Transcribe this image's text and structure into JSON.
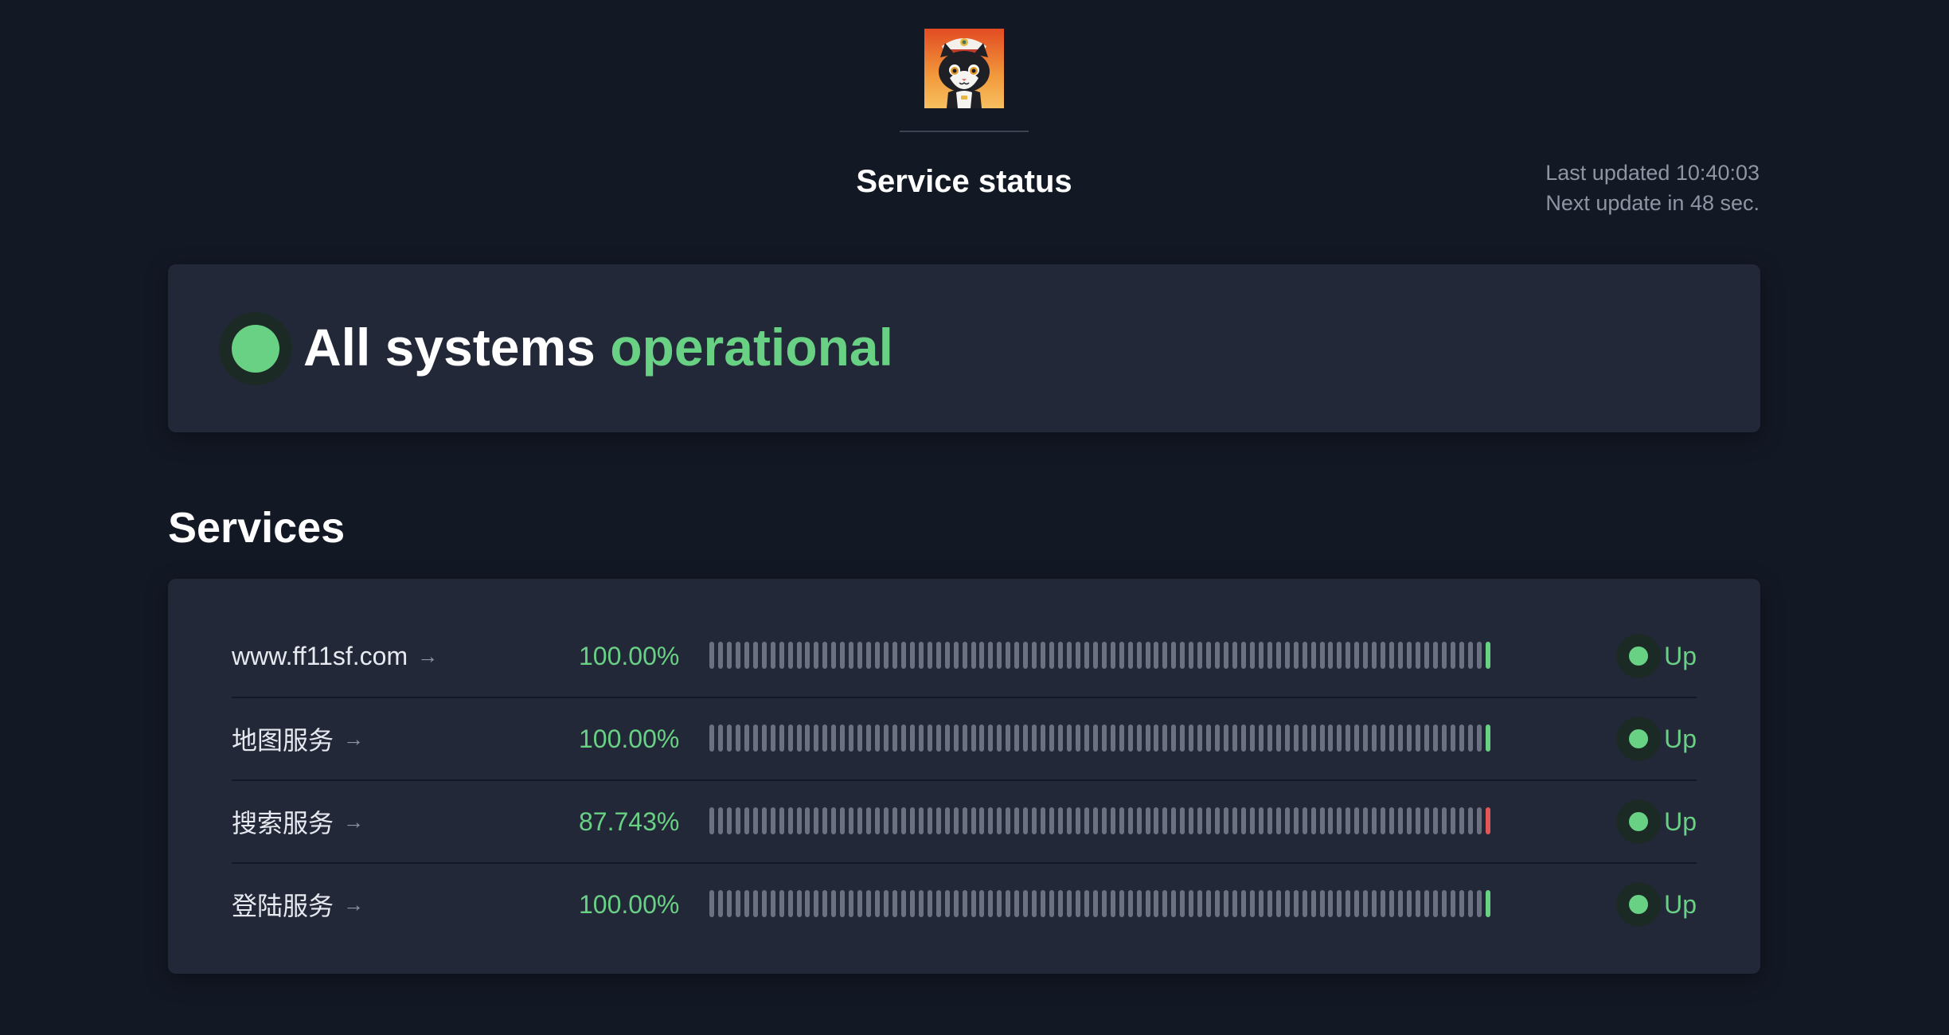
{
  "header": {
    "title": "Service status",
    "last_updated": "Last updated 10:40:03",
    "next_update": "Next update in 48 sec."
  },
  "overall": {
    "prefix": "All systems",
    "status": "operational",
    "color": "#68d184"
  },
  "services_heading": "Services",
  "colors": {
    "up": "#68d184",
    "down": "#e05757",
    "bar_idle": "#6b7180"
  },
  "services": [
    {
      "name": "www.ff11sf.com",
      "uptime": "100.00%",
      "state": "Up",
      "last_bar": "up",
      "bar_count": 90
    },
    {
      "name": "地图服务",
      "uptime": "100.00%",
      "state": "Up",
      "last_bar": "up",
      "bar_count": 90
    },
    {
      "name": "搜索服务",
      "uptime": "87.743%",
      "state": "Up",
      "last_bar": "down",
      "bar_count": 90
    },
    {
      "name": "登陆服务",
      "uptime": "100.00%",
      "state": "Up",
      "last_bar": "up",
      "bar_count": 90
    }
  ]
}
